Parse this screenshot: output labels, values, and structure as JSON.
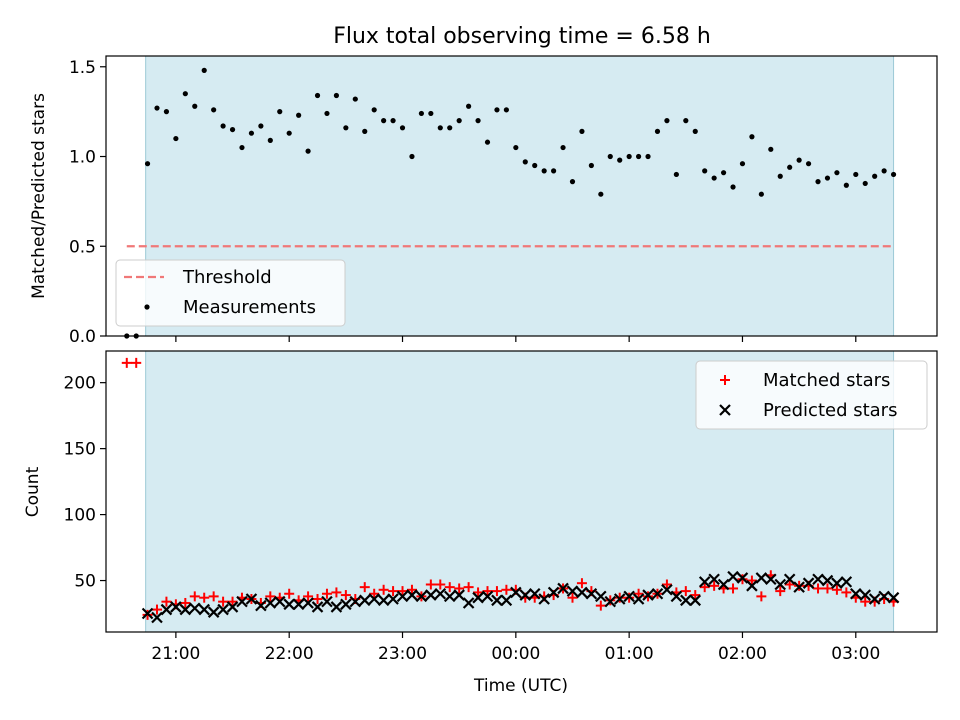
{
  "chart_data": [
    {
      "type": "scatter",
      "title": "Flux total observing time = 6.58 h",
      "xlabel": "",
      "ylabel": "Matched/Predicted stars",
      "xlim": [
        "20:23",
        "03:43"
      ],
      "ylim": [
        0,
        1.56
      ],
      "yticks": [
        "0.0",
        "0.5",
        "1.0",
        "1.5"
      ],
      "grid": false,
      "observing_window": [
        "20:44",
        "03:20"
      ],
      "threshold": {
        "name": "Threshold",
        "value": 0.5,
        "from": "20:34",
        "to": "03:20",
        "color": "#f07878"
      },
      "legend": {
        "placement": "lower-left",
        "entries": [
          "Threshold",
          "Measurements"
        ]
      },
      "series": [
        {
          "name": "Measurements",
          "color": "#000000",
          "points": [
            [
              "20:34",
              0.0
            ],
            [
              "20:39",
              0.0
            ],
            [
              "20:45",
              0.96
            ],
            [
              "20:50",
              1.27
            ],
            [
              "20:55",
              1.25
            ],
            [
              "21:00",
              1.1
            ],
            [
              "21:05",
              1.35
            ],
            [
              "21:10",
              1.28
            ],
            [
              "21:15",
              1.48
            ],
            [
              "21:20",
              1.26
            ],
            [
              "21:25",
              1.17
            ],
            [
              "21:30",
              1.15
            ],
            [
              "21:35",
              1.05
            ],
            [
              "21:40",
              1.13
            ],
            [
              "21:45",
              1.17
            ],
            [
              "21:50",
              1.09
            ],
            [
              "21:55",
              1.25
            ],
            [
              "22:00",
              1.13
            ],
            [
              "22:05",
              1.23
            ],
            [
              "22:10",
              1.03
            ],
            [
              "22:15",
              1.34
            ],
            [
              "22:20",
              1.24
            ],
            [
              "22:25",
              1.34
            ],
            [
              "22:30",
              1.16
            ],
            [
              "22:35",
              1.32
            ],
            [
              "22:40",
              1.14
            ],
            [
              "22:45",
              1.26
            ],
            [
              "22:50",
              1.2
            ],
            [
              "22:55",
              1.2
            ],
            [
              "23:00",
              1.16
            ],
            [
              "23:05",
              1.0
            ],
            [
              "23:10",
              1.24
            ],
            [
              "23:15",
              1.24
            ],
            [
              "23:20",
              1.16
            ],
            [
              "23:25",
              1.16
            ],
            [
              "23:30",
              1.2
            ],
            [
              "23:35",
              1.28
            ],
            [
              "23:40",
              1.2
            ],
            [
              "23:45",
              1.08
            ],
            [
              "23:50",
              1.26
            ],
            [
              "23:55",
              1.26
            ],
            [
              "00:00",
              1.05
            ],
            [
              "00:05",
              0.97
            ],
            [
              "00:10",
              0.95
            ],
            [
              "00:15",
              0.92
            ],
            [
              "00:20",
              0.92
            ],
            [
              "00:25",
              1.05
            ],
            [
              "00:30",
              0.86
            ],
            [
              "00:35",
              1.14
            ],
            [
              "00:40",
              0.95
            ],
            [
              "00:45",
              0.79
            ],
            [
              "00:50",
              1.0
            ],
            [
              "00:55",
              0.98
            ],
            [
              "01:00",
              1.0
            ],
            [
              "01:05",
              1.0
            ],
            [
              "01:10",
              1.0
            ],
            [
              "01:15",
              1.14
            ],
            [
              "01:20",
              1.2
            ],
            [
              "01:25",
              0.9
            ],
            [
              "01:30",
              1.2
            ],
            [
              "01:35",
              1.14
            ],
            [
              "01:40",
              0.92
            ],
            [
              "01:45",
              0.88
            ],
            [
              "01:50",
              0.91
            ],
            [
              "01:55",
              0.83
            ],
            [
              "02:00",
              0.96
            ],
            [
              "02:05",
              1.11
            ],
            [
              "02:10",
              0.79
            ],
            [
              "02:15",
              1.04
            ],
            [
              "02:20",
              0.89
            ],
            [
              "02:25",
              0.94
            ],
            [
              "02:30",
              0.98
            ],
            [
              "02:35",
              0.96
            ],
            [
              "02:40",
              0.86
            ],
            [
              "02:45",
              0.88
            ],
            [
              "02:50",
              0.91
            ],
            [
              "02:55",
              0.84
            ],
            [
              "03:00",
              0.9
            ],
            [
              "03:05",
              0.85
            ],
            [
              "03:10",
              0.89
            ],
            [
              "03:15",
              0.92
            ],
            [
              "03:20",
              0.9
            ]
          ]
        }
      ]
    },
    {
      "type": "scatter",
      "title": "",
      "xlabel": "Time (UTC)",
      "ylabel": "Count",
      "xlim": [
        "20:23",
        "03:43"
      ],
      "ylim": [
        11,
        224
      ],
      "yticks": [
        "50",
        "100",
        "150",
        "200"
      ],
      "xticks": [
        "21:00",
        "22:00",
        "23:00",
        "00:00",
        "01:00",
        "02:00",
        "03:00"
      ],
      "grid": false,
      "observing_window": [
        "20:44",
        "03:20"
      ],
      "legend": {
        "placement": "top-right",
        "entries": [
          "Matched stars",
          "Predicted stars"
        ]
      },
      "series": [
        {
          "name": "Matched stars",
          "marker": "+",
          "color": "#ff0000",
          "points": [
            [
              "20:34",
              215
            ],
            [
              "20:39",
              215
            ],
            [
              "20:45",
              24
            ],
            [
              "20:50",
              28
            ],
            [
              "20:55",
              34
            ],
            [
              "21:00",
              32
            ],
            [
              "21:05",
              33
            ],
            [
              "21:10",
              38
            ],
            [
              "21:15",
              37
            ],
            [
              "21:20",
              38
            ],
            [
              "21:25",
              34
            ],
            [
              "21:30",
              34
            ],
            [
              "21:35",
              37
            ],
            [
              "21:40",
              36
            ],
            [
              "21:45",
              33
            ],
            [
              "21:50",
              38
            ],
            [
              "21:55",
              37
            ],
            [
              "22:00",
              40
            ],
            [
              "22:05",
              35
            ],
            [
              "22:10",
              38
            ],
            [
              "22:15",
              36
            ],
            [
              "22:20",
              40
            ],
            [
              "22:25",
              41
            ],
            [
              "22:30",
              39
            ],
            [
              "22:35",
              36
            ],
            [
              "22:40",
              45
            ],
            [
              "22:45",
              40
            ],
            [
              "22:50",
              43
            ],
            [
              "22:55",
              42
            ],
            [
              "23:00",
              42
            ],
            [
              "23:05",
              43
            ],
            [
              "23:10",
              38
            ],
            [
              "23:15",
              47
            ],
            [
              "23:20",
              47
            ],
            [
              "23:25",
              45
            ],
            [
              "23:30",
              44
            ],
            [
              "23:35",
              45
            ],
            [
              "23:40",
              41
            ],
            [
              "23:45",
              42
            ],
            [
              "23:50",
              42
            ],
            [
              "23:55",
              43
            ],
            [
              "00:00",
              43
            ],
            [
              "00:05",
              37
            ],
            [
              "00:10",
              37
            ],
            [
              "00:15",
              38
            ],
            [
              "00:20",
              39
            ],
            [
              "00:25",
              44
            ],
            [
              "00:30",
              37
            ],
            [
              "00:35",
              48
            ],
            [
              "00:40",
              42
            ],
            [
              "00:45",
              31
            ],
            [
              "00:50",
              35
            ],
            [
              "00:55",
              37
            ],
            [
              "01:00",
              37
            ],
            [
              "01:05",
              40
            ],
            [
              "01:10",
              38
            ],
            [
              "01:15",
              40
            ],
            [
              "01:20",
              47
            ],
            [
              "01:25",
              41
            ],
            [
              "01:30",
              42
            ],
            [
              "01:35",
              39
            ],
            [
              "01:40",
              45
            ],
            [
              "01:45",
              46
            ],
            [
              "01:50",
              44
            ],
            [
              "01:55",
              44
            ],
            [
              "02:00",
              51
            ],
            [
              "02:05",
              50
            ],
            [
              "02:10",
              38
            ],
            [
              "02:15",
              54
            ],
            [
              "02:20",
              42
            ],
            [
              "02:25",
              47
            ],
            [
              "02:30",
              46
            ],
            [
              "02:35",
              46
            ],
            [
              "02:40",
              44
            ],
            [
              "02:45",
              44
            ],
            [
              "02:50",
              43
            ],
            [
              "02:55",
              41
            ],
            [
              "03:00",
              37
            ],
            [
              "03:05",
              34
            ],
            [
              "03:10",
              34
            ],
            [
              "03:15",
              36
            ],
            [
              "03:20",
              34
            ]
          ]
        },
        {
          "name": "Predicted stars",
          "marker": "x",
          "color": "#000000",
          "points": [
            [
              "20:45",
              25
            ],
            [
              "20:50",
              22
            ],
            [
              "20:55",
              28
            ],
            [
              "21:00",
              30
            ],
            [
              "21:05",
              28
            ],
            [
              "21:10",
              29
            ],
            [
              "21:15",
              28
            ],
            [
              "21:20",
              26
            ],
            [
              "21:25",
              28
            ],
            [
              "21:30",
              30
            ],
            [
              "21:35",
              34
            ],
            [
              "21:40",
              36
            ],
            [
              "21:45",
              31
            ],
            [
              "21:50",
              33
            ],
            [
              "21:55",
              34
            ],
            [
              "22:00",
              32
            ],
            [
              "22:05",
              32
            ],
            [
              "22:10",
              33
            ],
            [
              "22:15",
              30
            ],
            [
              "22:20",
              34
            ],
            [
              "22:25",
              30
            ],
            [
              "22:30",
              32
            ],
            [
              "22:35",
              34
            ],
            [
              "22:40",
              35
            ],
            [
              "22:45",
              36
            ],
            [
              "22:50",
              35
            ],
            [
              "22:55",
              36
            ],
            [
              "23:00",
              38
            ],
            [
              "23:05",
              39
            ],
            [
              "23:10",
              38
            ],
            [
              "23:15",
              39
            ],
            [
              "23:20",
              40
            ],
            [
              "23:25",
              38
            ],
            [
              "23:30",
              39
            ],
            [
              "23:35",
              33
            ],
            [
              "23:40",
              37
            ],
            [
              "23:45",
              38
            ],
            [
              "23:50",
              35
            ],
            [
              "23:55",
              35
            ],
            [
              "00:00",
              41
            ],
            [
              "00:05",
              39
            ],
            [
              "00:10",
              40
            ],
            [
              "00:15",
              36
            ],
            [
              "00:20",
              41
            ],
            [
              "00:25",
              44
            ],
            [
              "00:30",
              42
            ],
            [
              "00:35",
              41
            ],
            [
              "00:40",
              40
            ],
            [
              "00:45",
              38
            ],
            [
              "00:50",
              34
            ],
            [
              "00:55",
              36
            ],
            [
              "01:00",
              38
            ],
            [
              "01:05",
              36
            ],
            [
              "01:10",
              39
            ],
            [
              "01:15",
              40
            ],
            [
              "01:20",
              43
            ],
            [
              "01:25",
              38
            ],
            [
              "01:30",
              35
            ],
            [
              "01:35",
              35
            ],
            [
              "01:40",
              49
            ],
            [
              "01:45",
              51
            ],
            [
              "01:50",
              47
            ],
            [
              "01:55",
              53
            ],
            [
              "02:00",
              52
            ],
            [
              "02:05",
              46
            ],
            [
              "02:10",
              52
            ],
            [
              "02:15",
              51
            ],
            [
              "02:20",
              47
            ],
            [
              "02:25",
              51
            ],
            [
              "02:30",
              45
            ],
            [
              "02:35",
              48
            ],
            [
              "02:40",
              51
            ],
            [
              "02:45",
              50
            ],
            [
              "02:50",
              48
            ],
            [
              "02:55",
              49
            ],
            [
              "03:00",
              40
            ],
            [
              "03:05",
              39
            ],
            [
              "03:10",
              36
            ],
            [
              "03:15",
              38
            ],
            [
              "03:20",
              37
            ]
          ]
        }
      ]
    }
  ]
}
